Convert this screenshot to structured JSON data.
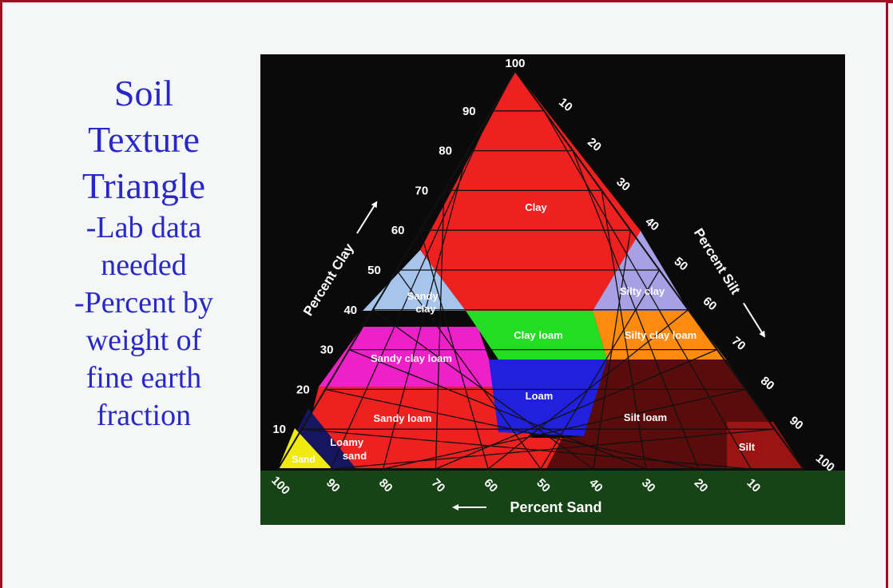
{
  "slide": {
    "title_lines": [
      "Soil",
      "Texture",
      "Triangle"
    ],
    "body_lines": [
      "-Lab data",
      "needed",
      "-Percent by",
      "weight of",
      "fine earth",
      "fraction"
    ]
  },
  "triangle": {
    "clay_axis_label": "Percent Clay",
    "silt_axis_label": "Percent Silt",
    "sand_axis_label": "Percent Sand",
    "clay_ticks": [
      "100",
      "90",
      "80",
      "70",
      "60",
      "50",
      "40",
      "30",
      "20",
      "10"
    ],
    "silt_ticks": [
      "10",
      "20",
      "30",
      "40",
      "50",
      "60",
      "70",
      "80",
      "90",
      "100"
    ],
    "sand_ticks": [
      "100",
      "90",
      "80",
      "70",
      "60",
      "50",
      "40",
      "30",
      "20",
      "10"
    ],
    "regions": [
      {
        "id": "clay",
        "label": "Clay",
        "color": "#ee2020"
      },
      {
        "id": "sandy-clay",
        "label": "Sandy clay",
        "color": "#a6c4ec"
      },
      {
        "id": "silty-clay",
        "label": "Silty clay",
        "color": "#a8a0e4"
      },
      {
        "id": "sandy-clay-loam",
        "label": "Sandy clay loam",
        "color": "#f020c8"
      },
      {
        "id": "clay-loam",
        "label": "Clay loam",
        "color": "#22dd22"
      },
      {
        "id": "silty-clay-loam",
        "label": "Silty clay loam",
        "color": "#ff8a10"
      },
      {
        "id": "sandy-loam",
        "label": "Sandy loam",
        "color": "#ee2020"
      },
      {
        "id": "loam",
        "label": "Loam",
        "color": "#2020dd"
      },
      {
        "id": "silt-loam",
        "label": "Silt loam",
        "color": "#5a0c0c"
      },
      {
        "id": "loamy-sand",
        "label": "Loamy sand",
        "color": "#161660"
      },
      {
        "id": "sand",
        "label": "Sand",
        "color": "#f0ea10"
      },
      {
        "id": "silt",
        "label": "Silt",
        "color": "#9a1414"
      }
    ]
  }
}
